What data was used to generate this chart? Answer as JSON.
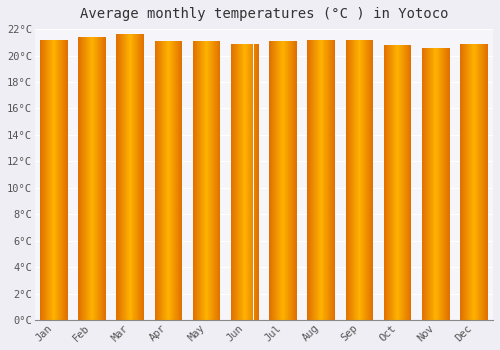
{
  "title": "Average monthly temperatures (°C ) in Yotoco",
  "months": [
    "Jan",
    "Feb",
    "Mar",
    "Apr",
    "May",
    "Jun",
    "Jul",
    "Aug",
    "Sep",
    "Oct",
    "Nov",
    "Dec"
  ],
  "temperatures": [
    21.2,
    21.4,
    21.6,
    21.1,
    21.1,
    20.9,
    21.1,
    21.2,
    21.2,
    20.8,
    20.6,
    20.9
  ],
  "ylim": [
    0,
    22
  ],
  "yticks": [
    0,
    2,
    4,
    6,
    8,
    10,
    12,
    14,
    16,
    18,
    20,
    22
  ],
  "ytick_labels": [
    "0°C",
    "2°C",
    "4°C",
    "6°C",
    "8°C",
    "10°C",
    "12°C",
    "14°C",
    "16°C",
    "18°C",
    "20°C",
    "22°C"
  ],
  "bar_color_center": "#FFB300",
  "bar_color_edge": "#E07000",
  "background_color": "#eeeef4",
  "plot_bg_color": "#f5f5fa",
  "grid_color": "#ffffff",
  "title_fontsize": 10,
  "tick_fontsize": 7.5,
  "title_font_family": "monospace"
}
